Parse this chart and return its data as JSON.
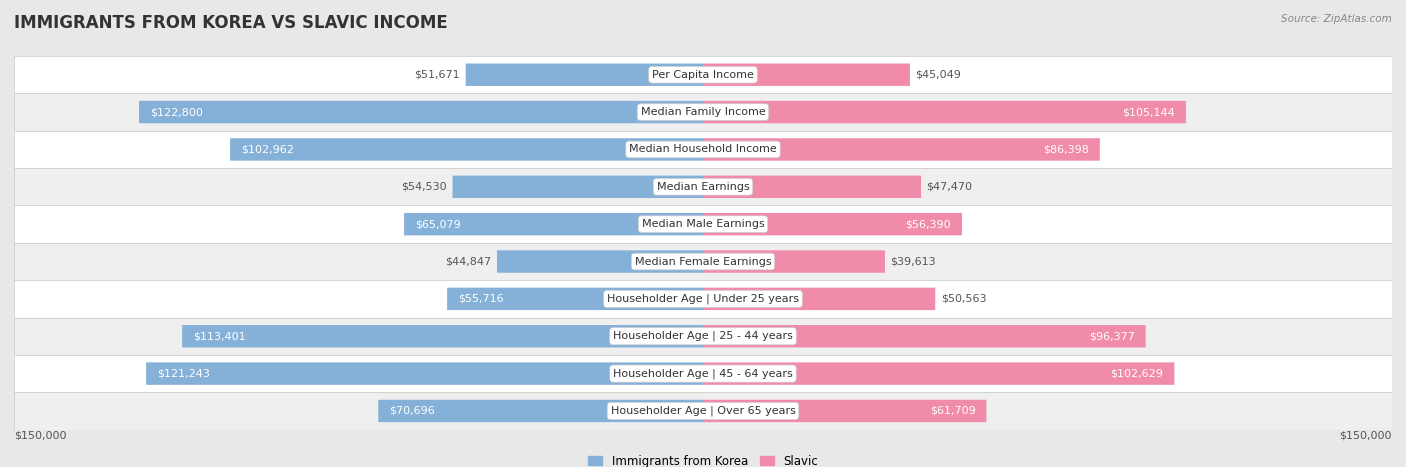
{
  "title": "IMMIGRANTS FROM KOREA VS SLAVIC INCOME",
  "source": "Source: ZipAtlas.com",
  "categories": [
    "Per Capita Income",
    "Median Family Income",
    "Median Household Income",
    "Median Earnings",
    "Median Male Earnings",
    "Median Female Earnings",
    "Householder Age | Under 25 years",
    "Householder Age | 25 - 44 years",
    "Householder Age | 45 - 64 years",
    "Householder Age | Over 65 years"
  ],
  "korea_values": [
    51671,
    122800,
    102962,
    54530,
    65079,
    44847,
    55716,
    113401,
    121243,
    70696
  ],
  "slavic_values": [
    45049,
    105144,
    86398,
    47470,
    56390,
    39613,
    50563,
    96377,
    102629,
    61709
  ],
  "korea_labels": [
    "$51,671",
    "$122,800",
    "$102,962",
    "$54,530",
    "$65,079",
    "$44,847",
    "$55,716",
    "$113,401",
    "$121,243",
    "$70,696"
  ],
  "slavic_labels": [
    "$45,049",
    "$105,144",
    "$86,398",
    "$47,470",
    "$56,390",
    "$39,613",
    "$50,563",
    "$96,377",
    "$102,629",
    "$61,709"
  ],
  "korea_color": "#85b0d8",
  "slavic_color": "#f08caa",
  "max_value": 150000,
  "x_label_left": "$150,000",
  "x_label_right": "$150,000",
  "legend_korea": "Immigrants from Korea",
  "legend_slavic": "Slavic",
  "bg_color": "#e8e8e8",
  "row_colors": [
    "#ffffff",
    "#efefef"
  ],
  "inside_threshold": 55000,
  "title_fontsize": 12,
  "label_fontsize": 8,
  "category_fontsize": 8
}
